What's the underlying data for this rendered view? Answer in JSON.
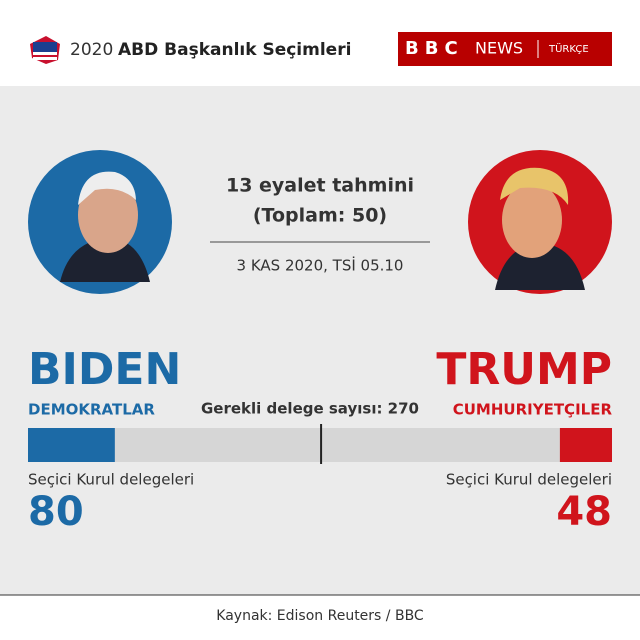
{
  "header": {
    "year": "2020",
    "title": "ABD Başkanlık Seçimleri",
    "logo": "BBC",
    "brand": "NEWS",
    "brand_sub": "TÜRKÇE"
  },
  "chart_data": {
    "type": "tug-of-war",
    "title": "13 eyalet tahmini",
    "subtitle": "(Toplam: 50)",
    "date": "3 KAS 2020, TSİ 05.10",
    "threshold": {
      "value": 270,
      "label": "Gerekli delege sayısı: 270"
    },
    "xlim": [
      0,
      538
    ],
    "series": [
      {
        "name": "BIDEN",
        "party": "DEMOKRATLAR",
        "label": "Seçici Kurul delegeleri",
        "color": "#1c6aa6",
        "value": 80,
        "side": "left"
      },
      {
        "name": "TRUMP",
        "party": "CUMHURIYETÇILER",
        "label": "Seçici Kurul delegeleri",
        "color": "#d0141c",
        "value": 48,
        "side": "right"
      }
    ]
  },
  "footer": {
    "source": "Kaynak: Edison Reuters / BBC"
  }
}
